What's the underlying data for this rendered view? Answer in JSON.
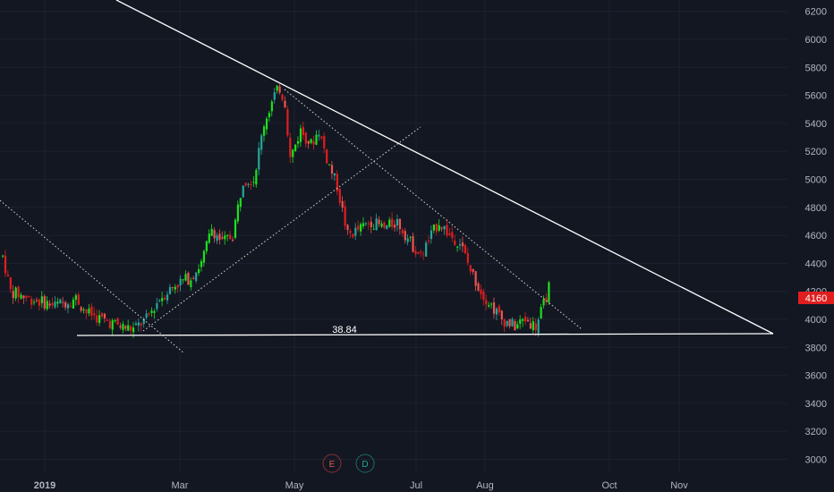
{
  "chart_data": {
    "type": "candlestick",
    "y_ticks": [
      6200,
      6000,
      5800,
      5600,
      5400,
      5200,
      5000,
      4800,
      4600,
      4400,
      4200,
      4000,
      3800,
      3600,
      3400,
      3200,
      3000
    ],
    "x_ticks": [
      {
        "label": "2019",
        "bold": true
      },
      {
        "label": "Mar",
        "bold": false
      },
      {
        "label": "May",
        "bold": false
      },
      {
        "label": "Jul",
        "bold": false
      },
      {
        "label": "Aug",
        "bold": false
      },
      {
        "label": "Oct",
        "bold": false
      },
      {
        "label": "Nov",
        "bold": false
      }
    ],
    "last_price": "4160",
    "annotation": "38.84",
    "event_markers": [
      "E",
      "D"
    ],
    "colors": {
      "background": "#131722",
      "up": "#26a69a",
      "up_bright": "#1ee01e",
      "down": "#ef5350",
      "down_bright": "#e01e1e",
      "price_label": "#e01e1e",
      "lines": "#ffffff",
      "axis_text": "#b2b5be",
      "marker_e": "#e0574f",
      "marker_d": "#26a69a"
    },
    "anchors": [
      [
        0,
        4450
      ],
      [
        3,
        4200
      ],
      [
        10,
        4150
      ],
      [
        20,
        4100
      ],
      [
        28,
        4150
      ],
      [
        32,
        4050
      ],
      [
        38,
        4000
      ],
      [
        45,
        3950
      ],
      [
        50,
        3930
      ],
      [
        55,
        4000
      ],
      [
        60,
        4150
      ],
      [
        66,
        4250
      ],
      [
        72,
        4300
      ],
      [
        76,
        4400
      ],
      [
        80,
        4650
      ],
      [
        84,
        4550
      ],
      [
        88,
        4600
      ],
      [
        92,
        5000
      ],
      [
        96,
        5000
      ],
      [
        100,
        5400
      ],
      [
        104,
        5600
      ],
      [
        106,
        5650
      ],
      [
        108,
        5550
      ],
      [
        110,
        5150
      ],
      [
        114,
        5350
      ],
      [
        118,
        5250
      ],
      [
        121,
        5350
      ],
      [
        124,
        5150
      ],
      [
        128,
        4950
      ],
      [
        132,
        4600
      ],
      [
        137,
        4650
      ],
      [
        141,
        4700
      ],
      [
        146,
        4650
      ],
      [
        151,
        4700
      ],
      [
        156,
        4550
      ],
      [
        160,
        4450
      ],
      [
        164,
        4600
      ],
      [
        167,
        4700
      ],
      [
        171,
        4600
      ],
      [
        175,
        4550
      ],
      [
        179,
        4350
      ],
      [
        183,
        4200
      ],
      [
        187,
        4100
      ],
      [
        191,
        4000
      ],
      [
        196,
        3950
      ],
      [
        200,
        4000
      ],
      [
        204,
        3950
      ],
      [
        207,
        4100
      ],
      [
        209,
        4230
      ]
    ]
  }
}
